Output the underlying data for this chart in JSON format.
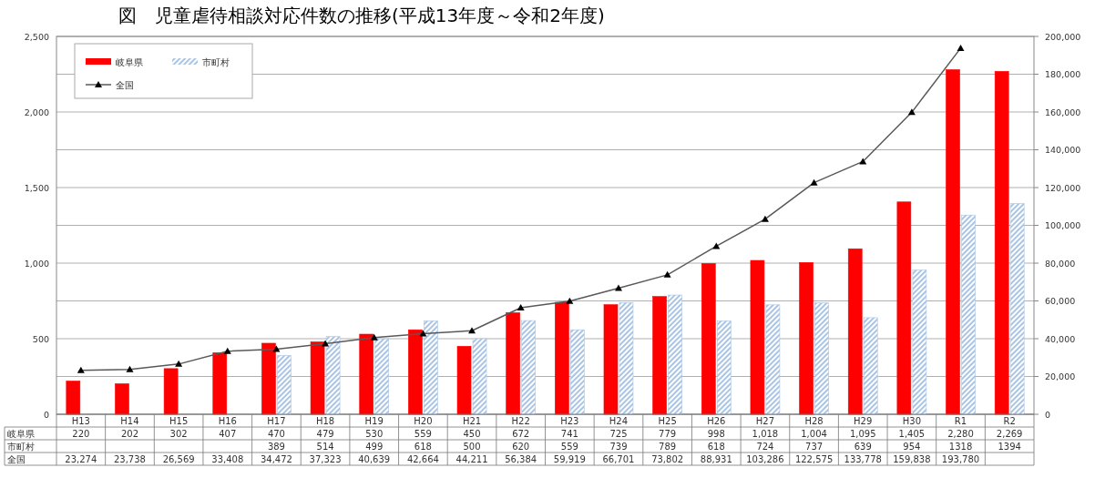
{
  "chart_data": {
    "type": "bar",
    "title": "図　児童虐待相談対応件数の推移(平成13年度～令和2年度)",
    "categories": [
      "H13",
      "H14",
      "H15",
      "H16",
      "H17",
      "H18",
      "H19",
      "H20",
      "H21",
      "H22",
      "H23",
      "H24",
      "H25",
      "H26",
      "H27",
      "H28",
      "H29",
      "H30",
      "R1",
      "R2"
    ],
    "series": [
      {
        "name": "岐阜県",
        "color": "#ff0000",
        "values": [
          220,
          202,
          302,
          407,
          470,
          479,
          530,
          559,
          450,
          672,
          741,
          725,
          779,
          998,
          1018,
          1004,
          1095,
          1405,
          2280,
          2269
        ],
        "value_labels": [
          "220",
          "202",
          "302",
          "407",
          "470",
          "479",
          "530",
          "559",
          "450",
          "672",
          "741",
          "725",
          "779",
          "998",
          "1,018",
          "1,004",
          "1,095",
          "1,405",
          "2,280",
          "2,269"
        ]
      },
      {
        "name": "市町村",
        "color": "#a9c4e4",
        "values": [
          null,
          null,
          null,
          null,
          389,
          514,
          499,
          618,
          500,
          620,
          559,
          739,
          789,
          618,
          724,
          737,
          639,
          954,
          1318,
          1394
        ],
        "value_labels": [
          null,
          null,
          null,
          null,
          "389",
          "514",
          "499",
          "618",
          "500",
          "620",
          "559",
          "739",
          "789",
          "618",
          "724",
          "737",
          "639",
          "954",
          "1318",
          "1394"
        ]
      },
      {
        "name": "全国",
        "type": "line",
        "axis": "y2",
        "color": "#595959",
        "marker": "triangle",
        "line_style": "solid",
        "values": [
          23274,
          23738,
          26569,
          33408,
          34472,
          37323,
          40639,
          42664,
          44211,
          56384,
          59919,
          66701,
          73802,
          88931,
          103286,
          122575,
          133778,
          159838,
          193780,
          null
        ],
        "value_labels": [
          "23,274",
          "23,738",
          "26,569",
          "33,408",
          "34,472",
          "37,323",
          "40,639",
          "42,664",
          "44,211",
          "56,384",
          "59,919",
          "66,701",
          "73,802",
          "88,931",
          "103,286",
          "122,575",
          "133,778",
          "159,838",
          "193,780",
          null
        ]
      }
    ],
    "ylim": [
      0,
      2500
    ],
    "yticks": [
      0,
      {
        "value": 500,
        "label": "500"
      },
      {
        "value": 1000,
        "label": "1,000"
      },
      {
        "value": 1500,
        "label": "1,500"
      },
      {
        "value": 2000,
        "label": "2,000"
      },
      {
        "value": 2500,
        "label": "2,500"
      }
    ],
    "y2lim": [
      0,
      200000
    ],
    "y2ticks": [
      0,
      {
        "value": 20000,
        "label": "20,000"
      },
      {
        "value": 40000,
        "label": "40,000"
      },
      {
        "value": 60000,
        "label": "60,000"
      },
      {
        "value": 80000,
        "label": "80,000"
      },
      {
        "value": 100000,
        "label": "100,000"
      },
      {
        "value": 120000,
        "label": "120,000"
      },
      {
        "value": 140000,
        "label": "140,000"
      },
      {
        "value": 160000,
        "label": "160,000"
      },
      {
        "value": 180000,
        "label": "180,000"
      },
      {
        "value": 200000,
        "label": "200,000"
      }
    ],
    "grid": true,
    "legend": "top left"
  }
}
